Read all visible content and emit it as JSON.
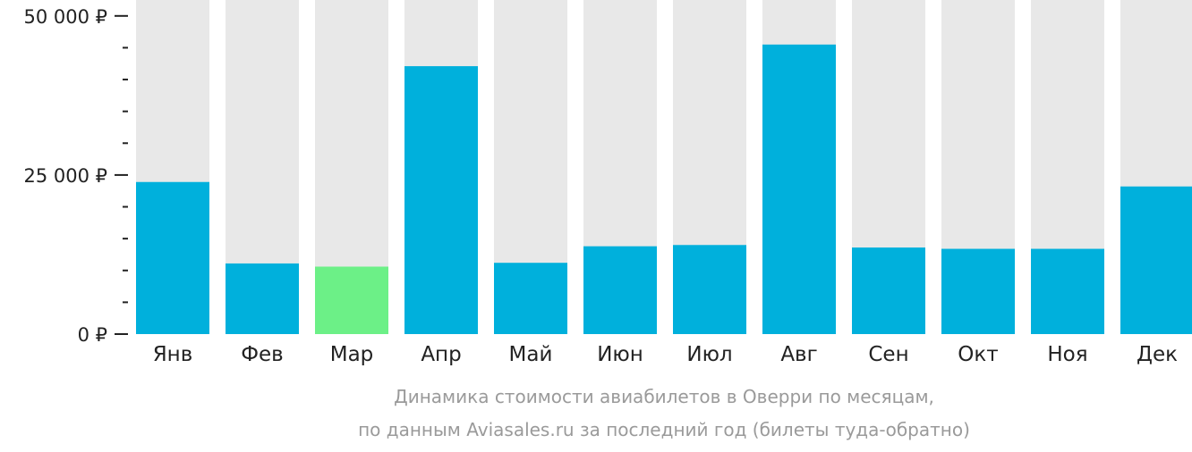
{
  "chart_data": {
    "type": "bar",
    "caption_lines": [
      "Динамика стоимости авиабилетов в Оверри по месяцам,",
      "по данным Aviasales.ru за последний год (билеты туда-обратно)"
    ],
    "categories": [
      "Янв",
      "Фев",
      "Мар",
      "Апр",
      "Май",
      "Июн",
      "Июл",
      "Авг",
      "Сен",
      "Окт",
      "Ноя",
      "Дек"
    ],
    "values": [
      23900,
      11100,
      10600,
      42100,
      11200,
      13800,
      14000,
      45500,
      13600,
      13400,
      13400,
      23200
    ],
    "highlight_index": 2,
    "ylim": [
      0,
      52500
    ],
    "y_major_ticks": [
      {
        "value": 0,
        "label": "0 ₽"
      },
      {
        "value": 25000,
        "label": "25 000 ₽"
      },
      {
        "value": 50000,
        "label": "50 000 ₽"
      }
    ],
    "y_minor_ticks": [
      5000,
      10000,
      15000,
      20000,
      30000,
      35000,
      40000,
      45000
    ],
    "legend": "none",
    "grid": false,
    "colors": {
      "bar": "#00b0dc",
      "bar_highlight": "#6cf087",
      "bar_background": "#e8e8e8",
      "axis": "#222222",
      "caption": "#9a9a9a"
    }
  }
}
